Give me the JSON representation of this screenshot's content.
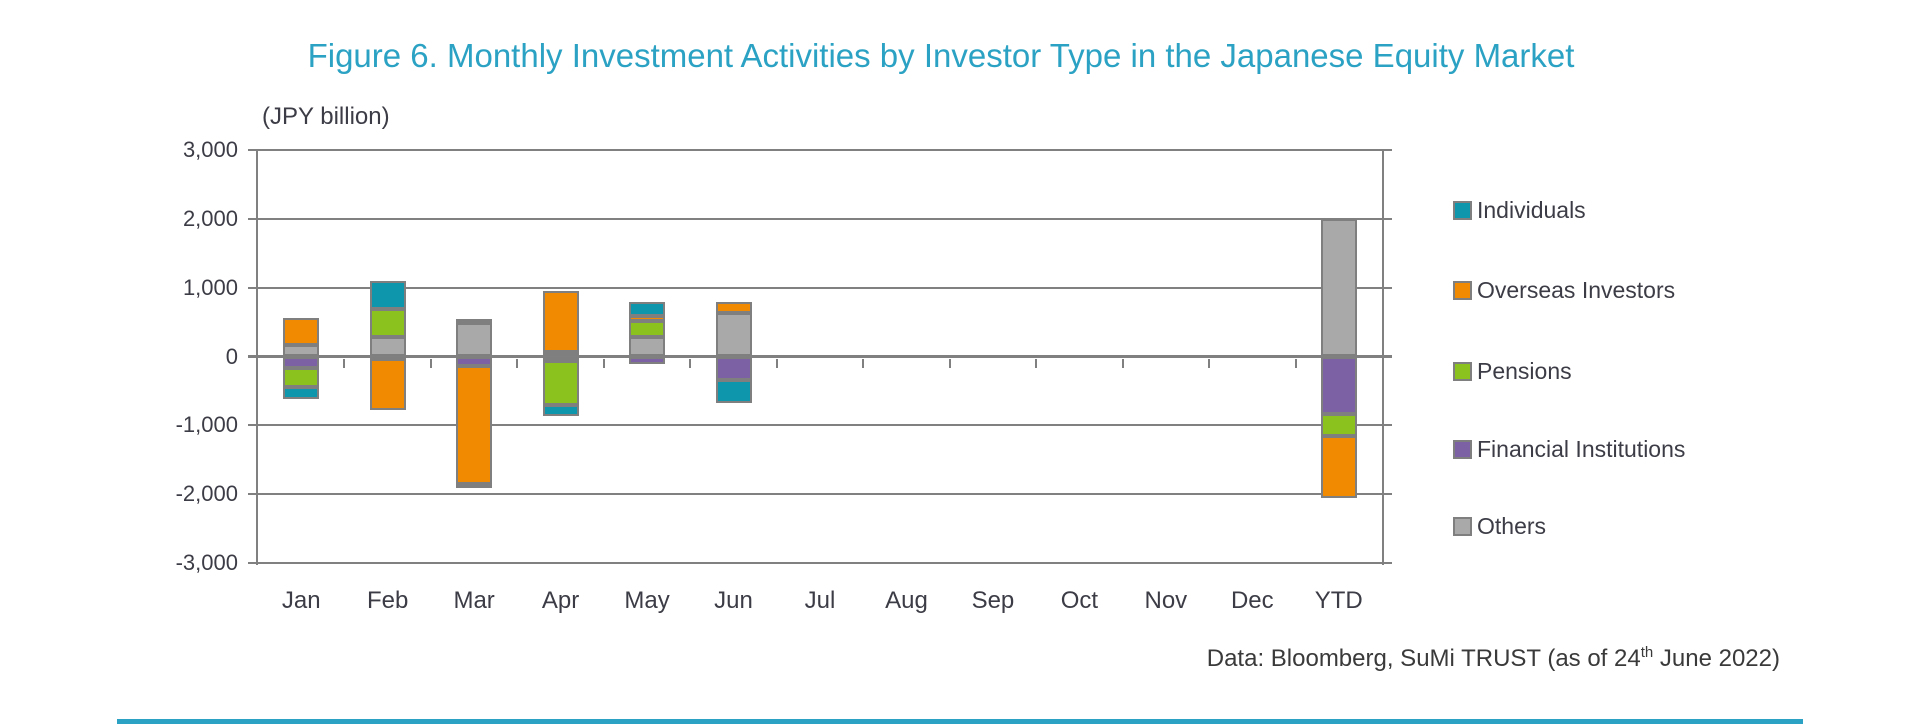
{
  "title": "Figure 6. Monthly Investment Activities by Investor Type in the Japanese Equity Market",
  "axis_unit_label": "(JPY billion)",
  "source": {
    "prefix": "Data: Bloomberg, SuMi TRUST (as of 24",
    "superscript": "th",
    "suffix": " June 2022)"
  },
  "colors": {
    "title_accent": "#2BA2C3",
    "gridline": "#808080",
    "bar_border": "#7F7F7F",
    "axis_text": "#3C3C46",
    "individuals": "#0E96AC",
    "overseas_investors": "#F18A00",
    "pensions": "#8CC21E",
    "financial_institutions": "#7C62A5",
    "others": "#A9A9A9"
  },
  "chart_data": {
    "type": "bar",
    "stacked": true,
    "title": "Figure 6. Monthly Investment Activities by Investor Type in the Japanese Equity Market",
    "xlabel": "",
    "ylabel": "(JPY billion)",
    "ylim": [
      -3000,
      3000
    ],
    "yticks": [
      3000,
      2000,
      1000,
      0,
      -1000,
      -2000,
      -3000
    ],
    "ytick_labels": [
      "3,000",
      "2,000",
      "1,000",
      "0",
      "-1,000",
      "-2,000",
      "-3,000"
    ],
    "grid": true,
    "legend_position": "right",
    "categories": [
      "Jan",
      "Feb",
      "Mar",
      "Apr",
      "May",
      "Jun",
      "Jul",
      "Aug",
      "Sep",
      "Oct",
      "Nov",
      "Dec",
      "YTD"
    ],
    "series": [
      {
        "name": "Individuals",
        "color": "#0E96AC",
        "values": [
          -170,
          410,
          -50,
          -155,
          205,
          -335,
          0,
          0,
          0,
          0,
          0,
          0,
          0
        ]
      },
      {
        "name": "Overseas Investors",
        "color": "#F18A00",
        "values": [
          400,
          -750,
          -1720,
          880,
          70,
          160,
          0,
          0,
          0,
          0,
          0,
          0,
          -890
        ]
      },
      {
        "name": "Pensions",
        "color": "#8CC21E",
        "values": [
          -290,
          395,
          50,
          -650,
          230,
          0,
          0,
          0,
          0,
          0,
          0,
          0,
          -330
        ]
      },
      {
        "name": "Financial Institutions",
        "color": "#7C62A5",
        "values": [
          -160,
          -30,
          -135,
          -60,
          -110,
          -340,
          0,
          0,
          0,
          0,
          0,
          0,
          -830
        ]
      },
      {
        "name": "Others",
        "color": "#A9A9A9",
        "values": [
          160,
          290,
          490,
          70,
          290,
          635,
          0,
          0,
          0,
          0,
          0,
          0,
          2000
        ]
      }
    ],
    "stack_order_bottom_first": [
      "Others",
      "Financial Institutions",
      "Pensions",
      "Overseas Investors",
      "Individuals"
    ]
  }
}
